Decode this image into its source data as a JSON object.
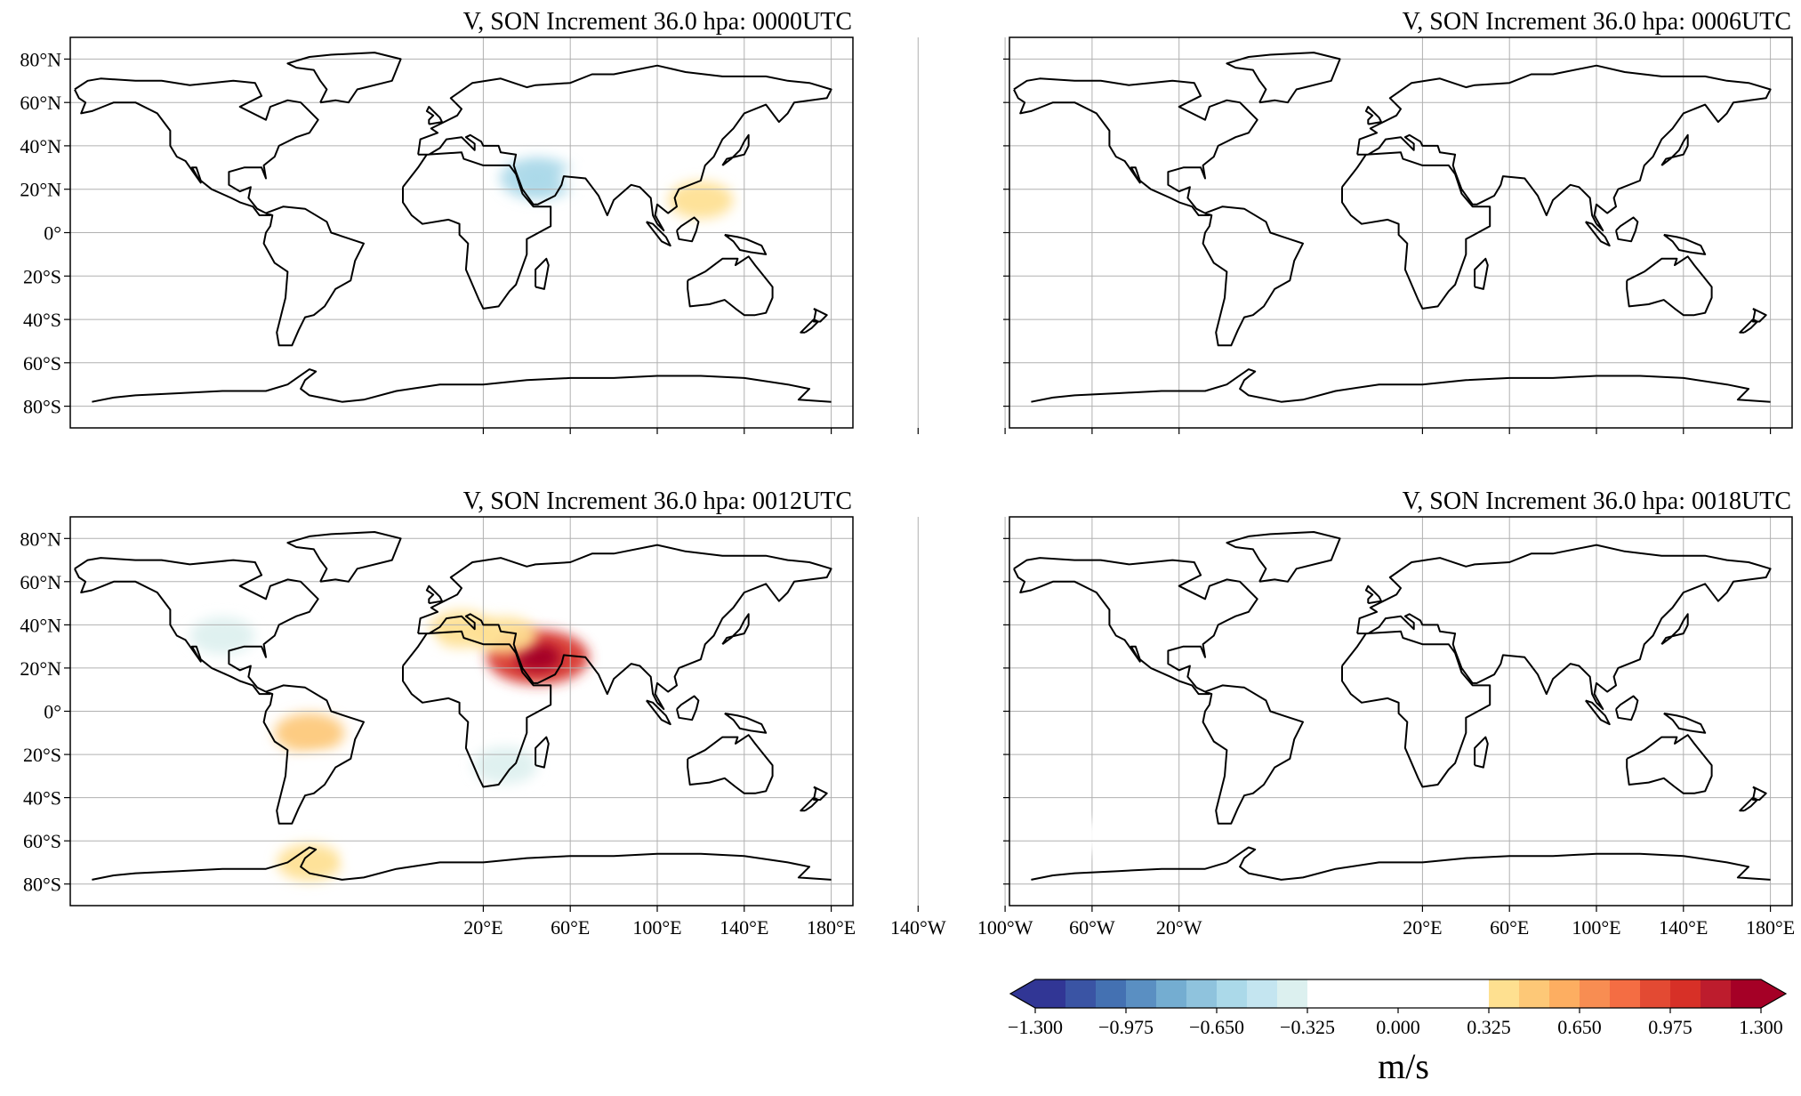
{
  "panels": [
    {
      "id": "p0000",
      "title": "V, SON Increment 36.0 hpa:  0000UTC",
      "y_ticks_shown": true,
      "x_ticks_shown": false
    },
    {
      "id": "p0006",
      "title": "V, SON Increment 36.0 hpa:  0006UTC",
      "y_ticks_shown": false,
      "x_ticks_shown": false
    },
    {
      "id": "p0012",
      "title": "V, SON Increment 36.0 hpa:  0012UTC",
      "y_ticks_shown": true,
      "x_ticks_shown": true
    },
    {
      "id": "p0018",
      "title": "V, SON Increment 36.0 hpa:  0018UTC",
      "y_ticks_shown": false,
      "x_ticks_shown": true
    }
  ],
  "map": {
    "projection": "PlateCarree",
    "central_longitude": 180,
    "lon_range": [
      -170,
      190
    ],
    "lat_range": [
      -90,
      90
    ],
    "lat_ticks": [
      80,
      60,
      40,
      20,
      0,
      -20,
      -40,
      -60,
      -80
    ],
    "lat_tick_labels": [
      "80°N",
      "60°N",
      "40°N",
      "20°N",
      "0°",
      "20°S",
      "40°S",
      "60°S",
      "80°S"
    ],
    "lon_ticks": [
      20,
      60,
      100,
      140,
      180,
      220,
      260,
      300,
      340
    ],
    "lon_tick_labels": [
      "20°E",
      "60°E",
      "100°E",
      "140°E",
      "180°E",
      "140°W",
      "100°W",
      "60°W",
      "20°W"
    ],
    "grid": true,
    "coastline_color": "#000000",
    "grid_color": "#b0b0b0"
  },
  "colorbar": {
    "orientation": "horizontal",
    "extend": "both",
    "vmin": -1.3,
    "vmax": 1.3,
    "n_levels": 24,
    "tick_values": [
      -1.3,
      -0.975,
      -0.65,
      -0.325,
      0.0,
      0.325,
      0.65,
      0.975,
      1.3
    ],
    "tick_labels": [
      "−1.300",
      "−0.975",
      "−0.650",
      "−0.325",
      "0.000",
      "0.325",
      "0.650",
      "0.975",
      "1.300"
    ],
    "colors": [
      "#313695",
      "#3a54a4",
      "#4471b2",
      "#5a8fc2",
      "#74add1",
      "#8fc3dd",
      "#abd9e9",
      "#c4e5f0",
      "#dcf0ef",
      "#ffffff",
      "#ffffff",
      "#ffffff",
      "#ffffff",
      "#ffffff",
      "#ffffff",
      "#fee090",
      "#fdc877",
      "#fdae61",
      "#f88d52",
      "#f46d43",
      "#e34a33",
      "#d73027",
      "#bd1c2d",
      "#a50026"
    ],
    "under_color": "#313695",
    "over_color": "#a50026",
    "unit_label": "m/s"
  },
  "chart_data": {
    "type": "heatmap",
    "field": "V wind increment",
    "units": "m/s",
    "features": {
      "p0000": [
        {
          "lon": 45,
          "lat": 25,
          "value": -0.55
        },
        {
          "lon": 70,
          "lat": 25,
          "value": -0.3
        },
        {
          "lon": 30,
          "lat": -35,
          "value": 0.25
        },
        {
          "lon": 120,
          "lat": 15,
          "value": 0.35
        },
        {
          "lon": 250,
          "lat": 28,
          "value": 0.3
        },
        {
          "lon": 270,
          "lat": -78,
          "value": 0.25
        },
        {
          "lon": 310,
          "lat": -62,
          "value": 0.25
        },
        {
          "lon": 100,
          "lat": -66,
          "value": -0.2
        },
        {
          "lon": 20,
          "lat": -62,
          "value": 0.2
        },
        {
          "lon": 190,
          "lat": 20,
          "value": 0.25
        },
        {
          "lon": 160,
          "lat": 65,
          "value": 0.2
        },
        {
          "lon": 270,
          "lat": 50,
          "value": -0.15
        }
      ],
      "p0006": [
        {
          "lon": 45,
          "lat": -60,
          "value": 0.2
        },
        {
          "lon": 310,
          "lat": -72,
          "value": 0.25
        },
        {
          "lon": 330,
          "lat": -62,
          "value": 0.2
        }
      ],
      "p0012": [
        {
          "lon": 45,
          "lat": 25,
          "value": 1.05
        },
        {
          "lon": 30,
          "lat": 35,
          "value": 0.35
        },
        {
          "lon": 10,
          "lat": 38,
          "value": 0.35
        },
        {
          "lon": 260,
          "lat": 35,
          "value": -0.35
        },
        {
          "lon": 300,
          "lat": 80,
          "value": 0.3
        },
        {
          "lon": 300,
          "lat": -10,
          "value": 0.45
        },
        {
          "lon": 305,
          "lat": -28,
          "value": 0.3
        },
        {
          "lon": 30,
          "lat": -25,
          "value": -0.35
        },
        {
          "lon": 300,
          "lat": -70,
          "value": 0.35
        },
        {
          "lon": 330,
          "lat": -68,
          "value": 0.25
        },
        {
          "lon": 60,
          "lat": -65,
          "value": 0.25
        },
        {
          "lon": 345,
          "lat": 30,
          "value": 0.25
        },
        {
          "lon": 125,
          "lat": 35,
          "value": 0.25
        }
      ],
      "p0018": [
        {
          "lon": 50,
          "lat": -62,
          "value": 0.2
        },
        {
          "lon": 225,
          "lat": -58,
          "value": 0.2
        },
        {
          "lon": 300,
          "lat": -78,
          "value": 0.25
        },
        {
          "lon": 320,
          "lat": -65,
          "value": 0.2
        }
      ]
    }
  }
}
